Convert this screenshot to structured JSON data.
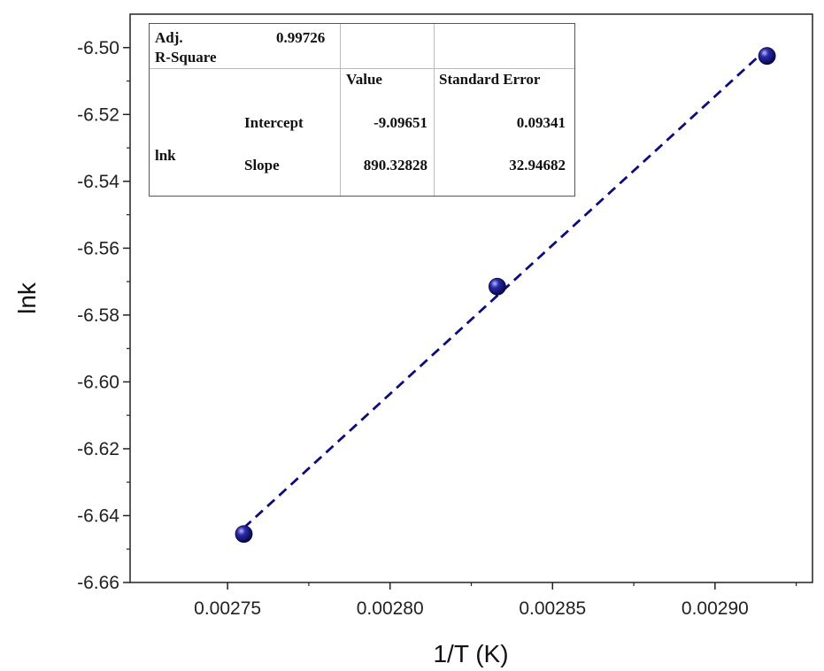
{
  "chart_data": {
    "type": "scatter",
    "xlabel": "1/T (K)",
    "ylabel": "lnk",
    "xlim": [
      0.00272,
      0.00293
    ],
    "ylim": [
      -6.66,
      -6.49
    ],
    "xticks": [
      "0.00275",
      "0.00280",
      "0.00285",
      "0.00290"
    ],
    "yticks": [
      "-6.50",
      "-6.52",
      "-6.54",
      "-6.56",
      "-6.58",
      "-6.60",
      "-6.62",
      "-6.64",
      "-6.66"
    ],
    "grid": false,
    "series": [
      {
        "x": [
          0.002755,
          0.002833,
          0.002916
        ],
        "y": [
          -6.6455,
          -6.5715,
          -6.5025
        ],
        "marker": "sphere",
        "color": "#0d0d7a"
      }
    ],
    "fit_line": {
      "style": "dashed",
      "color": "#0d0d7a",
      "intercept": -9.09651,
      "slope": 890.32828
    },
    "fit_table": {
      "adj_r_square_label_1": "Adj.",
      "adj_r_square_label_2": "R-Square",
      "adj_r_square_value": "0.99726",
      "col_value": "Value",
      "col_std_error": "Standard Error",
      "row_group": "lnk",
      "intercept_label": "Intercept",
      "intercept_value": "-9.09651",
      "intercept_error": "0.09341",
      "slope_label": "Slope",
      "slope_value": "890.32828",
      "slope_error": "32.94682"
    }
  }
}
